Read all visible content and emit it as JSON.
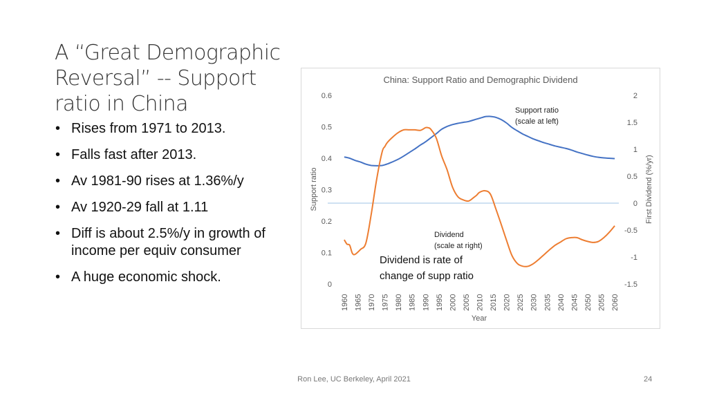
{
  "slide": {
    "title": "A “Great Demographic Reversal” -- Support ratio in China",
    "bullets": [
      "Rises from 1971 to 2013.",
      "Falls fast after 2013.",
      "Av 1981-90 rises at 1.36%/y",
      "Av 1920-29 fall at 1.11",
      "Diff is about 2.5%/y in growth of income per equiv consumer",
      "A huge economic shock."
    ],
    "footer": "Ron Lee, UC Berkeley, April 2021",
    "page_number": "24"
  },
  "chart_data": {
    "type": "line",
    "title": "China: Support Ratio and Demographic Dividend",
    "xlabel": "Year",
    "ylabel_left": "Support ratio",
    "ylabel_right": "First Dividend (%/yr)",
    "x_ticks": [
      "1960",
      "1965",
      "1970",
      "1975",
      "1980",
      "1985",
      "1990",
      "1995",
      "2000",
      "2005",
      "2010",
      "2015",
      "2020",
      "2025",
      "2030",
      "2035",
      "2040",
      "2045",
      "2050",
      "2055",
      "2060"
    ],
    "y_left": {
      "lim": [
        0,
        0.6
      ],
      "ticks": [
        "0",
        "0.1",
        "0.2",
        "0.3",
        "0.4",
        "0.5",
        "0.6"
      ]
    },
    "y_right": {
      "lim": [
        -1.5,
        2
      ],
      "ticks": [
        "-1.5",
        "-1",
        "-0.5",
        "0",
        "0.5",
        "1",
        "1.5",
        "2"
      ]
    },
    "colors": {
      "support": "#4472c4",
      "dividend": "#ed7d31",
      "zero_line": "#9dc3e6"
    },
    "series": [
      {
        "name": "Support ratio",
        "axis": "left",
        "x": [
          1960,
          1962,
          1964,
          1966,
          1968,
          1970,
          1972,
          1974,
          1976,
          1978,
          1980,
          1982,
          1984,
          1986,
          1988,
          1990,
          1992,
          1994,
          1996,
          1998,
          2000,
          2002,
          2004,
          2006,
          2008,
          2010,
          2012,
          2013,
          2014,
          2016,
          2018,
          2020,
          2022,
          2024,
          2026,
          2028,
          2030,
          2032,
          2034,
          2036,
          2038,
          2040,
          2042,
          2044,
          2046,
          2048,
          2050,
          2052,
          2054,
          2056,
          2058,
          2060
        ],
        "values": [
          0.404,
          0.4,
          0.393,
          0.388,
          0.381,
          0.377,
          0.376,
          0.377,
          0.382,
          0.389,
          0.397,
          0.407,
          0.418,
          0.429,
          0.441,
          0.452,
          0.465,
          0.478,
          0.492,
          0.501,
          0.507,
          0.511,
          0.514,
          0.517,
          0.522,
          0.527,
          0.532,
          0.533,
          0.533,
          0.53,
          0.523,
          0.512,
          0.498,
          0.487,
          0.477,
          0.469,
          0.461,
          0.455,
          0.449,
          0.444,
          0.439,
          0.435,
          0.431,
          0.426,
          0.42,
          0.415,
          0.41,
          0.406,
          0.403,
          0.401,
          0.4,
          0.399
        ]
      },
      {
        "name": "Dividend",
        "axis": "right",
        "x": [
          1960,
          1961,
          1962,
          1963,
          1964,
          1966,
          1968,
          1970,
          1972,
          1974,
          1975,
          1976,
          1978,
          1980,
          1982,
          1984,
          1986,
          1988,
          1989,
          1990,
          1991,
          1992,
          1994,
          1996,
          1998,
          2000,
          2002,
          2004,
          2006,
          2008,
          2009,
          2010,
          2012,
          2014,
          2016,
          2018,
          2020,
          2022,
          2024,
          2026,
          2028,
          2030,
          2032,
          2034,
          2036,
          2038,
          2040,
          2042,
          2044,
          2046,
          2048,
          2050,
          2052,
          2054,
          2056,
          2058,
          2060
        ],
        "values": [
          -0.68,
          -0.76,
          -0.78,
          -0.93,
          -0.95,
          -0.86,
          -0.74,
          -0.2,
          0.45,
          0.95,
          1.05,
          1.13,
          1.23,
          1.31,
          1.36,
          1.36,
          1.36,
          1.35,
          1.37,
          1.4,
          1.4,
          1.37,
          1.21,
          0.88,
          0.62,
          0.3,
          0.12,
          0.06,
          0.04,
          0.11,
          0.15,
          0.2,
          0.23,
          0.17,
          -0.1,
          -0.39,
          -0.69,
          -0.97,
          -1.12,
          -1.17,
          -1.17,
          -1.12,
          -1.04,
          -0.95,
          -0.86,
          -0.78,
          -0.72,
          -0.66,
          -0.64,
          -0.64,
          -0.68,
          -0.71,
          -0.73,
          -0.71,
          -0.64,
          -0.54,
          -0.42
        ]
      }
    ],
    "annotations": {
      "support_label": [
        "Support ratio",
        "(scale at left)"
      ],
      "dividend_label": [
        "Dividend",
        "(scale at right)"
      ],
      "note": [
        "Dividend is rate of",
        "change of supp ratio"
      ]
    }
  }
}
